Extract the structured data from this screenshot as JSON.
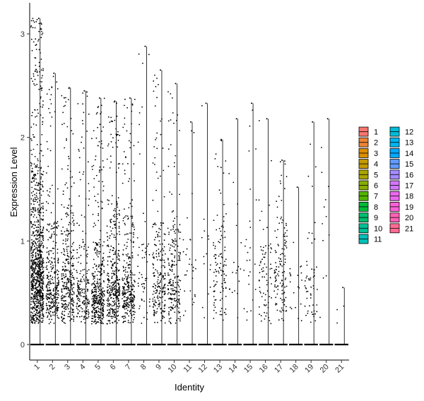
{
  "chart_data": {
    "type": "violin",
    "xlabel": "Identity",
    "ylabel": "Expression Level",
    "ylim": [
      -0.15,
      3.3
    ],
    "yticks": [
      0,
      1,
      2,
      3
    ],
    "categories": [
      "1",
      "2",
      "3",
      "4",
      "5",
      "6",
      "7",
      "8",
      "9",
      "10",
      "11",
      "12",
      "13",
      "14",
      "15",
      "16",
      "17",
      "18",
      "19",
      "20",
      "21"
    ],
    "colors": [
      "#F8766D",
      "#EB8335",
      "#DA8F00",
      "#C49A00",
      "#A9A400",
      "#86AC00",
      "#53B400",
      "#00BA38",
      "#00BE6D",
      "#00C094",
      "#00C0B8",
      "#00BCD8",
      "#00B4EF",
      "#00A9FF",
      "#619CFF",
      "#A58AFF",
      "#D078F9",
      "#EC69EF",
      "#FB61D7",
      "#FF63B6",
      "#FF6C92"
    ],
    "series": [
      {
        "name": "1",
        "max": 3.15,
        "n": 900,
        "hi": 0.8,
        "mean": 0.65
      },
      {
        "name": "2",
        "max": 2.62,
        "n": 300,
        "hi": 0.45,
        "mean": 0.45
      },
      {
        "name": "3",
        "max": 2.48,
        "n": 320,
        "hi": 0.5,
        "mean": 0.55
      },
      {
        "name": "4",
        "max": 2.45,
        "n": 200,
        "hi": 0.3,
        "mean": 0.4
      },
      {
        "name": "5",
        "max": 2.38,
        "n": 380,
        "hi": 0.35,
        "mean": 0.35
      },
      {
        "name": "6",
        "max": 2.35,
        "n": 360,
        "hi": 0.6,
        "mean": 0.5
      },
      {
        "name": "7",
        "max": 2.38,
        "n": 300,
        "hi": 0.5,
        "mean": 0.45
      },
      {
        "name": "8",
        "max": 2.88,
        "n": 55,
        "hi": 0.0,
        "mean": 0.8
      },
      {
        "name": "9",
        "max": 2.65,
        "n": 220,
        "hi": 0.35,
        "mean": 0.55
      },
      {
        "name": "10",
        "max": 2.52,
        "n": 210,
        "hi": 0.35,
        "mean": 0.6
      },
      {
        "name": "11",
        "max": 2.15,
        "n": 30,
        "hi": 0.0,
        "mean": 0.7
      },
      {
        "name": "12",
        "max": 2.33,
        "n": 15,
        "hi": 0.0,
        "mean": 1.0
      },
      {
        "name": "13",
        "max": 1.98,
        "n": 110,
        "hi": 0.2,
        "mean": 0.7
      },
      {
        "name": "14",
        "max": 2.18,
        "n": 18,
        "hi": 0.0,
        "mean": 1.0
      },
      {
        "name": "15",
        "max": 2.33,
        "n": 25,
        "hi": 0.0,
        "mean": 1.0
      },
      {
        "name": "16",
        "max": 2.18,
        "n": 75,
        "hi": 0.0,
        "mean": 0.7
      },
      {
        "name": "17",
        "max": 1.78,
        "n": 130,
        "hi": 0.2,
        "mean": 0.75
      },
      {
        "name": "18",
        "max": 1.52,
        "n": 20,
        "hi": 0.0,
        "mean": 0.7
      },
      {
        "name": "19",
        "max": 2.15,
        "n": 55,
        "hi": 0.0,
        "mean": 0.5
      },
      {
        "name": "20",
        "max": 2.18,
        "n": 12,
        "hi": 0.0,
        "mean": 1.2
      },
      {
        "name": "21",
        "max": 0.55,
        "n": 3,
        "hi": 0.0,
        "mean": 0.5
      }
    ]
  }
}
